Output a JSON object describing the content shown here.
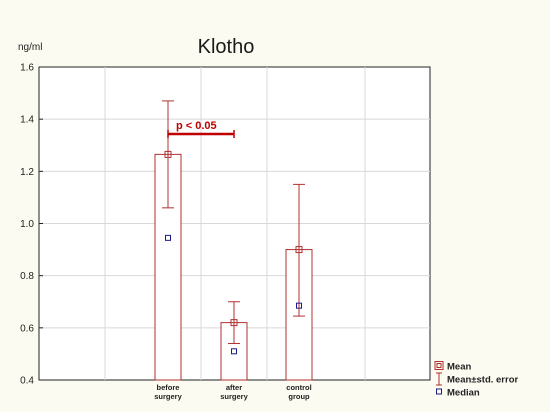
{
  "chart_data": {
    "type": "bar",
    "title": "Klotho",
    "ylabel": "ng/ml",
    "ylim": [
      0.4,
      1.6
    ],
    "yticks": [
      "0.4",
      "0.6",
      "0.8",
      "1.0",
      "1.2",
      "1.4",
      "1.6"
    ],
    "categories": [
      [
        "before",
        "surgery"
      ],
      [
        "after",
        "surgery"
      ],
      [
        "control",
        "group"
      ]
    ],
    "mean": [
      1.265,
      0.62,
      0.9
    ],
    "mean_plus_se": [
      1.47,
      0.7,
      1.15
    ],
    "mean_minus_se": [
      1.06,
      0.54,
      0.645
    ],
    "median": [
      0.945,
      0.51,
      0.685
    ],
    "grid": true,
    "legend_position": "bottom-right",
    "legend": [
      "Mean",
      "Mean±std. error",
      "Median"
    ],
    "annotation": "p < 0.05",
    "colors": {
      "bar": "#b03030",
      "median": "#1a1a8c",
      "significance": "#c00000",
      "grid": "#d8d8d8",
      "plot_bg": "#ffffff"
    }
  }
}
